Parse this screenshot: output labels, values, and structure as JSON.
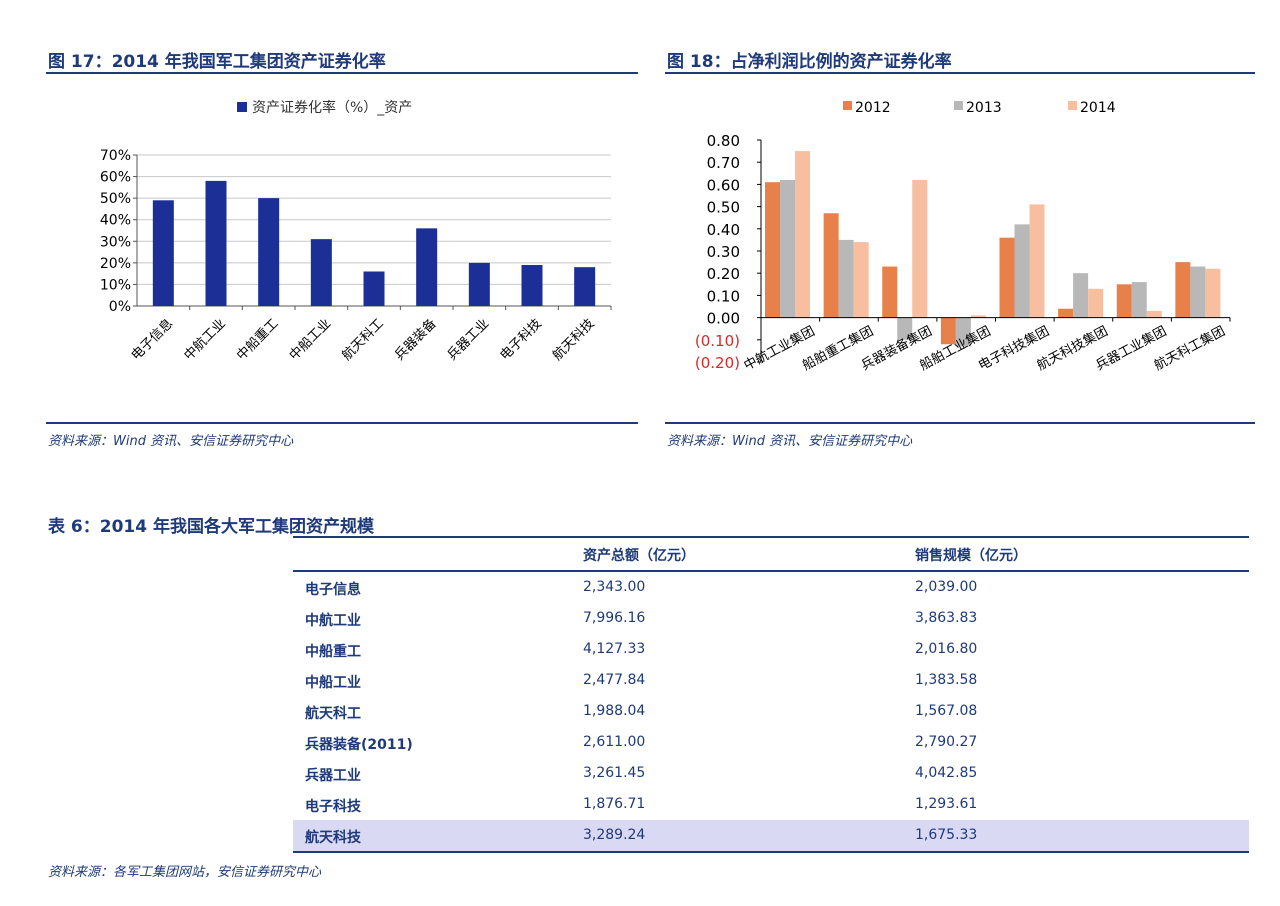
{
  "fig17": {
    "title": "图 17：2014 年我国军工集团资产证券化率",
    "source": "资料来源：Wind 资讯、安信证券研究中心"
  },
  "fig18": {
    "title": "图 18：占净利润比例的资产证券化率",
    "source": "资料来源：Wind 资讯、安信证券研究中心"
  },
  "chart_data": [
    {
      "id": "fig17",
      "type": "bar",
      "title": "",
      "categories": [
        "电子信息",
        "中航工业",
        "中船重工",
        "中船工业",
        "航天科工",
        "兵器装备",
        "兵器工业",
        "电子科技",
        "航天科技"
      ],
      "series": [
        {
          "name": "资产证券化率（%）_资产",
          "color": "#1b2f96",
          "values": [
            49,
            58,
            50,
            31,
            16,
            36,
            20,
            19,
            18
          ]
        }
      ],
      "ylim": [
        0,
        70
      ],
      "yticks": [
        0,
        10,
        20,
        30,
        40,
        50,
        60,
        70
      ],
      "ytick_labels": [
        "0%",
        "10%",
        "20%",
        "30%",
        "40%",
        "50%",
        "60%",
        "70%"
      ],
      "grid": true,
      "legend": "top-center"
    },
    {
      "id": "fig18",
      "type": "bar",
      "title": "",
      "categories": [
        "中航工业集团",
        "船舶重工集团",
        "兵器装备集团",
        "船舶工业集团",
        "电子科技集团",
        "航天科技集团",
        "兵器工业集团",
        "航天科工集团"
      ],
      "series": [
        {
          "name": "2012",
          "color": "#e8804a",
          "values": [
            0.61,
            0.47,
            0.23,
            -0.12,
            0.36,
            0.04,
            0.15,
            0.25
          ]
        },
        {
          "name": "2013",
          "color": "#b8b8b8",
          "values": [
            0.62,
            0.35,
            -0.1,
            -0.13,
            0.42,
            0.2,
            0.16,
            0.23
          ]
        },
        {
          "name": "2014",
          "color": "#f7bfa0",
          "values": [
            0.75,
            0.34,
            0.62,
            0.01,
            0.51,
            0.13,
            0.03,
            0.22
          ]
        }
      ],
      "ylim": [
        -0.2,
        0.8
      ],
      "yticks": [
        -0.2,
        -0.1,
        0.0,
        0.1,
        0.2,
        0.3,
        0.4,
        0.5,
        0.6,
        0.7,
        0.8
      ],
      "ytick_labels": [
        "(0.20)",
        "(0.10)",
        "0.00",
        "0.10",
        "0.20",
        "0.30",
        "0.40",
        "0.50",
        "0.60",
        "0.70",
        "0.80"
      ],
      "grid": false,
      "legend": "top"
    }
  ],
  "table6": {
    "title": "表 6：2014 年我国各大军工集团资产规模",
    "headers": [
      "",
      "资产总额（亿元）",
      "销售规模（亿元）"
    ],
    "rows": [
      [
        "电子信息",
        "2,343.00",
        "2,039.00"
      ],
      [
        "中航工业",
        "7,996.16",
        "3,863.83"
      ],
      [
        "中船重工",
        "4,127.33",
        "2,016.80"
      ],
      [
        "中船工业",
        "2,477.84",
        "1,383.58"
      ],
      [
        "航天科工",
        "1,988.04",
        "1,567.08"
      ],
      [
        "兵器装备(2011)",
        "2,611.00",
        "2,790.27"
      ],
      [
        "兵器工业",
        "3,261.45",
        "4,042.85"
      ],
      [
        "电子科技",
        "1,876.71",
        "1,293.61"
      ],
      [
        "航天科技",
        "3,289.24",
        "1,675.33"
      ]
    ],
    "highlight_row": 8,
    "source": "资料来源：各军工集团网站，安信证券研究中心"
  }
}
